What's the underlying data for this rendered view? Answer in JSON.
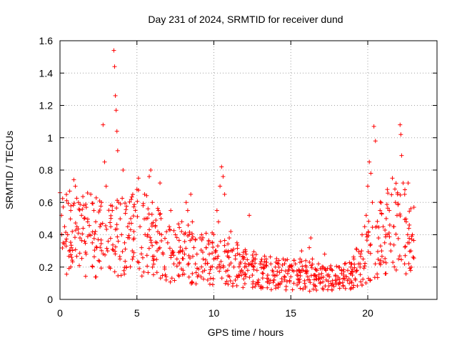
{
  "chart_data": {
    "type": "scatter",
    "title": "Day 231 of 2024, SRMTID for receiver dund",
    "xlabel": "GPS time / hours",
    "ylabel": "SRMTID / TECUs",
    "xlim": [
      0,
      24.5
    ],
    "ylim": [
      0,
      1.6
    ],
    "xticks": [
      0,
      5,
      10,
      15,
      20
    ],
    "xtick_labels": [
      "0",
      "5",
      "10",
      "15",
      "20"
    ],
    "yticks": [
      0,
      0.2,
      0.4,
      0.6,
      0.8,
      1.0,
      1.2,
      1.4,
      1.6
    ],
    "ytick_labels": [
      "0",
      "0.2",
      "0.4",
      "0.6",
      "0.8",
      "1",
      "1.2",
      "1.4",
      "1.6"
    ],
    "grid": true,
    "marker": "+",
    "color": "#ff0000",
    "series": [
      {
        "name": "SRMTID",
        "points": [
          [
            0.0,
            0.66
          ],
          [
            0.1,
            0.52
          ],
          [
            0.2,
            0.35
          ],
          [
            0.3,
            0.45
          ],
          [
            0.4,
            0.33
          ],
          [
            0.5,
            0.4
          ],
          [
            0.6,
            0.3
          ],
          [
            0.7,
            0.55
          ],
          [
            0.8,
            0.42
          ],
          [
            0.9,
            0.74
          ],
          [
            1.0,
            0.7
          ],
          [
            1.1,
            0.45
          ],
          [
            1.2,
            0.6
          ],
          [
            1.3,
            0.38
          ],
          [
            1.4,
            0.52
          ],
          [
            1.5,
            0.44
          ],
          [
            1.6,
            0.36
          ],
          [
            1.7,
            0.28
          ],
          [
            1.8,
            0.48
          ],
          [
            1.9,
            0.4
          ],
          [
            2.0,
            0.65
          ],
          [
            2.1,
            0.35
          ],
          [
            2.2,
            0.55
          ],
          [
            2.3,
            0.42
          ],
          [
            2.4,
            0.32
          ],
          [
            2.5,
            0.24
          ],
          [
            2.6,
            0.45
          ],
          [
            2.7,
            0.6
          ],
          [
            2.8,
            1.08
          ],
          [
            2.9,
            0.85
          ],
          [
            3.0,
            0.7
          ],
          [
            3.1,
            0.3
          ],
          [
            3.2,
            0.2
          ],
          [
            3.3,
            0.45
          ],
          [
            3.4,
            0.55
          ],
          [
            3.5,
            1.54
          ],
          [
            3.55,
            1.44
          ],
          [
            3.6,
            1.26
          ],
          [
            3.65,
            1.17
          ],
          [
            3.7,
            1.04
          ],
          [
            3.75,
            0.92
          ],
          [
            3.8,
            0.6
          ],
          [
            3.9,
            0.25
          ],
          [
            4.0,
            0.4
          ],
          [
            4.1,
            0.8
          ],
          [
            4.2,
            0.35
          ],
          [
            4.3,
            0.2
          ],
          [
            4.4,
            0.45
          ],
          [
            4.5,
            0.38
          ],
          [
            4.6,
            0.5
          ],
          [
            4.7,
            0.3
          ],
          [
            4.8,
            0.42
          ],
          [
            4.9,
            0.55
          ],
          [
            5.0,
            0.68
          ],
          [
            5.1,
            0.75
          ],
          [
            5.2,
            0.45
          ],
          [
            5.3,
            0.32
          ],
          [
            5.4,
            0.58
          ],
          [
            5.5,
            0.65
          ],
          [
            5.6,
            0.5
          ],
          [
            5.7,
            0.4
          ],
          [
            5.8,
            0.76
          ],
          [
            5.9,
            0.8
          ],
          [
            6.0,
            0.6
          ],
          [
            6.1,
            0.25
          ],
          [
            6.2,
            0.45
          ],
          [
            6.3,
            0.35
          ],
          [
            6.4,
            0.55
          ],
          [
            6.5,
            0.72
          ],
          [
            6.6,
            0.4
          ],
          [
            6.7,
            0.28
          ],
          [
            6.8,
            0.2
          ],
          [
            6.9,
            0.12
          ],
          [
            7.0,
            0.35
          ],
          [
            7.1,
            0.45
          ],
          [
            7.2,
            0.55
          ],
          [
            7.3,
            0.3
          ],
          [
            7.4,
            0.22
          ],
          [
            7.5,
            0.4
          ],
          [
            7.6,
            0.25
          ],
          [
            7.7,
            0.15
          ],
          [
            7.8,
            0.3
          ],
          [
            7.9,
            0.42
          ],
          [
            8.0,
            0.18
          ],
          [
            8.1,
            0.28
          ],
          [
            8.2,
            0.6
          ],
          [
            8.3,
            0.55
          ],
          [
            8.4,
            0.4
          ],
          [
            8.5,
            0.65
          ],
          [
            8.6,
            0.48
          ],
          [
            8.7,
            0.32
          ],
          [
            8.8,
            0.22
          ],
          [
            8.9,
            0.28
          ],
          [
            9.0,
            0.15
          ],
          [
            9.1,
            0.38
          ],
          [
            9.2,
            0.4
          ],
          [
            9.3,
            0.25
          ],
          [
            9.4,
            0.18
          ],
          [
            9.5,
            0.32
          ],
          [
            9.6,
            0.12
          ],
          [
            9.7,
            0.28
          ],
          [
            9.8,
            0.2
          ],
          [
            9.9,
            0.35
          ],
          [
            10.0,
            0.25
          ],
          [
            10.1,
            0.3
          ],
          [
            10.2,
            0.55
          ],
          [
            10.3,
            0.48
          ],
          [
            10.4,
            0.7
          ],
          [
            10.5,
            0.82
          ],
          [
            10.6,
            0.76
          ],
          [
            10.7,
            0.65
          ],
          [
            10.8,
            0.3
          ],
          [
            10.9,
            0.18
          ],
          [
            11.0,
            0.38
          ],
          [
            11.1,
            0.42
          ],
          [
            11.2,
            0.3
          ],
          [
            11.3,
            0.2
          ],
          [
            11.4,
            0.25
          ],
          [
            11.5,
            0.35
          ],
          [
            11.6,
            0.15
          ],
          [
            11.7,
            0.22
          ],
          [
            11.8,
            0.18
          ],
          [
            11.9,
            0.25
          ],
          [
            12.0,
            0.2
          ],
          [
            12.1,
            0.28
          ],
          [
            12.2,
            0.18
          ],
          [
            12.3,
            0.52
          ],
          [
            12.4,
            0.22
          ],
          [
            12.5,
            0.15
          ],
          [
            12.6,
            0.2
          ],
          [
            12.7,
            0.25
          ],
          [
            12.8,
            0.18
          ],
          [
            12.9,
            0.12
          ],
          [
            13.0,
            0.22
          ],
          [
            13.1,
            0.08
          ],
          [
            13.2,
            0.16
          ],
          [
            13.3,
            0.2
          ],
          [
            13.4,
            0.25
          ],
          [
            13.5,
            0.15
          ],
          [
            13.6,
            0.1
          ],
          [
            13.7,
            0.22
          ],
          [
            13.8,
            0.18
          ],
          [
            13.9,
            0.12
          ],
          [
            14.0,
            0.2
          ],
          [
            14.1,
            0.15
          ],
          [
            14.2,
            0.22
          ],
          [
            14.3,
            0.1
          ],
          [
            14.4,
            0.18
          ],
          [
            14.5,
            0.25
          ],
          [
            14.6,
            0.12
          ],
          [
            14.7,
            0.08
          ],
          [
            14.8,
            0.16
          ],
          [
            14.9,
            0.2
          ],
          [
            15.0,
            0.14
          ],
          [
            15.1,
            0.18
          ],
          [
            15.2,
            0.1
          ],
          [
            15.3,
            0.22
          ],
          [
            15.4,
            0.15
          ],
          [
            15.5,
            0.12
          ],
          [
            15.6,
            0.25
          ],
          [
            15.7,
            0.3
          ],
          [
            15.8,
            0.18
          ],
          [
            15.9,
            0.1
          ],
          [
            16.0,
            0.2
          ],
          [
            16.1,
            0.14
          ],
          [
            16.2,
            0.32
          ],
          [
            16.3,
            0.38
          ],
          [
            16.4,
            0.25
          ],
          [
            16.5,
            0.15
          ],
          [
            16.6,
            0.08
          ],
          [
            16.7,
            0.18
          ],
          [
            16.8,
            0.22
          ],
          [
            16.9,
            0.1
          ],
          [
            17.0,
            0.16
          ],
          [
            17.1,
            0.2
          ],
          [
            17.2,
            0.28
          ],
          [
            17.3,
            0.12
          ],
          [
            17.4,
            0.06
          ],
          [
            17.5,
            0.14
          ],
          [
            17.6,
            0.1
          ],
          [
            17.7,
            0.18
          ],
          [
            17.8,
            0.08
          ],
          [
            17.9,
            0.15
          ],
          [
            18.0,
            0.12
          ],
          [
            18.1,
            0.2
          ],
          [
            18.2,
            0.1
          ],
          [
            18.3,
            0.16
          ],
          [
            18.4,
            0.08
          ],
          [
            18.5,
            0.22
          ],
          [
            18.6,
            0.14
          ],
          [
            18.7,
            0.18
          ],
          [
            18.8,
            0.1
          ],
          [
            18.9,
            0.2
          ],
          [
            19.0,
            0.15
          ],
          [
            19.1,
            0.25
          ],
          [
            19.2,
            0.12
          ],
          [
            19.3,
            0.18
          ],
          [
            19.4,
            0.22
          ],
          [
            19.5,
            0.2
          ],
          [
            19.6,
            0.3
          ],
          [
            19.7,
            0.25
          ],
          [
            19.8,
            0.45
          ],
          [
            19.9,
            0.52
          ],
          [
            20.0,
            0.7
          ],
          [
            20.1,
            0.85
          ],
          [
            20.2,
            0.78
          ],
          [
            20.3,
            0.6
          ],
          [
            20.4,
            1.07
          ],
          [
            20.5,
            0.98
          ],
          [
            20.6,
            0.45
          ],
          [
            20.7,
            0.38
          ],
          [
            20.8,
            0.55
          ],
          [
            20.9,
            0.3
          ],
          [
            21.0,
            0.45
          ],
          [
            21.1,
            0.35
          ],
          [
            21.2,
            0.5
          ],
          [
            21.3,
            0.4
          ],
          [
            21.4,
            0.55
          ],
          [
            21.5,
            0.3
          ],
          [
            21.6,
            0.75
          ],
          [
            21.7,
            0.45
          ],
          [
            21.8,
            0.6
          ],
          [
            21.9,
            0.52
          ],
          [
            22.0,
            0.25
          ],
          [
            22.1,
            1.08
          ],
          [
            22.15,
            1.02
          ],
          [
            22.2,
            0.89
          ],
          [
            22.3,
            0.72
          ],
          [
            22.4,
            0.65
          ],
          [
            22.5,
            0.48
          ],
          [
            22.6,
            0.35
          ],
          [
            22.7,
            0.46
          ],
          [
            22.8,
            0.3
          ],
          [
            22.9,
            0.4
          ],
          [
            23.0,
            0.57
          ]
        ],
        "dense_band": [
          [
            0.0,
            0.42
          ],
          [
            1.0,
            0.4
          ],
          [
            2.0,
            0.4
          ],
          [
            3.0,
            0.36
          ],
          [
            4.0,
            0.38
          ],
          [
            5.0,
            0.42
          ],
          [
            6.0,
            0.38
          ],
          [
            7.0,
            0.3
          ],
          [
            8.0,
            0.3
          ],
          [
            9.0,
            0.25
          ],
          [
            10.0,
            0.25
          ],
          [
            11.0,
            0.22
          ],
          [
            12.0,
            0.2
          ],
          [
            13.0,
            0.18
          ],
          [
            14.0,
            0.17
          ],
          [
            15.0,
            0.15
          ],
          [
            16.0,
            0.15
          ],
          [
            17.0,
            0.13
          ],
          [
            18.0,
            0.13
          ],
          [
            19.0,
            0.16
          ],
          [
            20.0,
            0.3
          ],
          [
            21.0,
            0.4
          ],
          [
            22.0,
            0.45
          ],
          [
            23.0,
            0.45
          ]
        ]
      }
    ]
  }
}
